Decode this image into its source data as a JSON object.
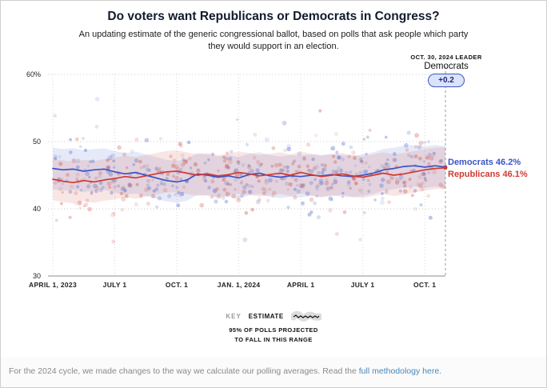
{
  "header": {
    "title": "Do voters want Republicans or Democrats in Congress?",
    "subtitle_line1": "An updating estimate of the generic congressional ballot, based on polls that ask people which party",
    "subtitle_line2": "they would support in an election."
  },
  "annotation": {
    "date_label": "OCT. 30, 2024 LEADER",
    "leader": "Democrats",
    "margin": "+0.2"
  },
  "end_labels": {
    "democrats": "Democrats 46.2%",
    "republicans": "Republicans 46.1%"
  },
  "key": {
    "key_label": "KEY",
    "estimate_label": "ESTIMATE",
    "range_line1": "95% OF POLLS PROJECTED",
    "range_line2": "TO FALL IN THIS RANGE"
  },
  "footer": {
    "text": "For the 2024 cycle, we made changes to the way we calculate our polling averages. Read the ",
    "link_text": "full methodology here."
  },
  "chart_data": {
    "type": "line",
    "title": "Generic congressional ballot polling average",
    "x_axis": {
      "ticks": [
        "APRIL 1, 2023",
        "JULY 1",
        "OCT. 1",
        "JAN. 1, 2024",
        "APRIL 1",
        "JULY 1",
        "OCT. 1"
      ],
      "tick_positions_months": [
        0,
        3,
        6,
        9,
        12,
        15,
        18
      ],
      "end_month": 19,
      "end_date_label": "OCT. 30, 2024"
    },
    "y_axis": {
      "ticks": [
        "60%",
        "50",
        "40",
        "30"
      ],
      "tick_values": [
        60,
        50,
        40,
        30
      ],
      "unit": "%"
    },
    "series_step": 0.5,
    "band_halfwidth": 3.1,
    "series": [
      {
        "name": "Democrats",
        "end_value": 46.2,
        "color": "#3b54c4",
        "scatter_color": "#4a63c8",
        "band_color": "rgba(90,110,200,0.15)",
        "values": [
          46.0,
          45.8,
          45.9,
          45.6,
          45.8,
          45.9,
          45.5,
          45.2,
          45.4,
          45.0,
          44.6,
          44.2,
          44.0,
          44.3,
          45.2,
          45.0,
          44.7,
          44.9,
          44.6,
          45.1,
          45.3,
          44.9,
          44.7,
          44.9,
          44.8,
          45.0,
          44.9,
          45.1,
          44.9,
          44.8,
          45.0,
          45.3,
          45.8,
          46.0,
          46.3,
          46.4,
          46.2,
          46.4,
          46.2
        ]
      },
      {
        "name": "Republicans",
        "end_value": 46.1,
        "color": "#cf3a33",
        "scatter_color": "#d0524a",
        "band_color": "rgba(208,90,82,0.15)",
        "values": [
          44.4,
          44.1,
          43.9,
          44.2,
          44.0,
          44.3,
          44.5,
          44.8,
          44.6,
          44.9,
          45.2,
          45.5,
          45.6,
          45.3,
          45.0,
          45.2,
          44.9,
          45.1,
          45.4,
          45.2,
          44.9,
          45.1,
          45.3,
          45.0,
          45.4,
          45.1,
          44.8,
          45.0,
          45.2,
          44.9,
          44.7,
          45.0,
          45.3,
          45.0,
          45.2,
          45.5,
          45.8,
          46.0,
          46.1
        ]
      }
    ],
    "scatter": {
      "count_per_party": 250,
      "seed": 20241030,
      "spread": 2.5
    }
  }
}
